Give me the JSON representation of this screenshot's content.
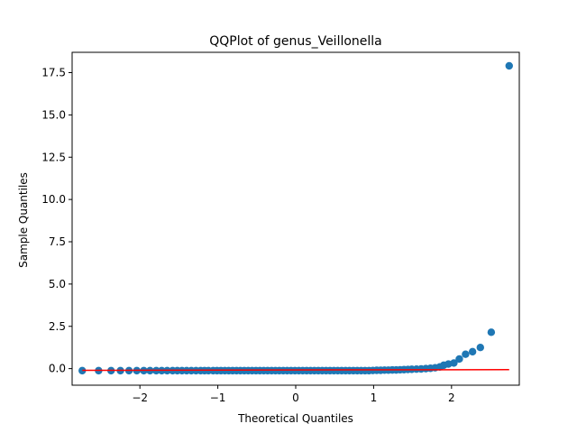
{
  "chart_data": {
    "type": "scatter",
    "title": "QQPlot of genus_Veillonella",
    "xlabel": "Theoretical Quantiles",
    "ylabel": "Sample Quantiles",
    "xlim": [
      -2.87,
      2.87
    ],
    "ylim": [
      -0.98,
      18.7
    ],
    "xticks": [
      -2,
      -1,
      0,
      1,
      2
    ],
    "xtick_labels": [
      "−2",
      "−1",
      "0",
      "1",
      "2"
    ],
    "yticks": [
      0.0,
      2.5,
      5.0,
      7.5,
      10.0,
      12.5,
      15.0,
      17.5
    ],
    "ytick_labels": [
      "0.0",
      "2.5",
      "5.0",
      "7.5",
      "10.0",
      "12.5",
      "15.0",
      "17.5"
    ],
    "grid": false,
    "marker_color": "#1f77b4",
    "line_color": "#ff0000",
    "series": [
      {
        "kind": "points",
        "x": [
          -2.74,
          -2.53,
          -2.37,
          -2.25,
          -2.14,
          -2.04,
          -1.95,
          -1.87,
          -1.79,
          -1.72,
          -1.65,
          -1.58,
          -1.52,
          -1.46,
          -1.4,
          -1.34,
          -1.28,
          -1.22,
          -1.17,
          -1.12,
          -1.06,
          -1.01,
          -0.96,
          -0.91,
          -0.86,
          -0.81,
          -0.76,
          -0.71,
          -0.66,
          -0.61,
          -0.56,
          -0.51,
          -0.46,
          -0.41,
          -0.36,
          -0.31,
          -0.26,
          -0.21,
          -0.16,
          -0.11,
          -0.06,
          -0.01,
          0.04,
          0.09,
          0.14,
          0.19,
          0.24,
          0.29,
          0.34,
          0.39,
          0.44,
          0.49,
          0.54,
          0.59,
          0.64,
          0.69,
          0.74,
          0.79,
          0.84,
          0.89,
          0.94,
          0.99,
          1.04,
          1.09,
          1.14,
          1.19,
          1.24,
          1.29,
          1.34,
          1.39,
          1.44,
          1.49,
          1.55,
          1.61,
          1.67,
          1.73,
          1.79,
          1.85,
          1.9,
          1.96,
          2.03,
          2.1,
          2.18,
          2.27,
          2.37,
          2.51,
          2.74
        ],
        "y": [
          -0.12,
          -0.12,
          -0.12,
          -0.12,
          -0.12,
          -0.12,
          -0.12,
          -0.12,
          -0.12,
          -0.12,
          -0.12,
          -0.12,
          -0.12,
          -0.12,
          -0.12,
          -0.12,
          -0.12,
          -0.12,
          -0.12,
          -0.12,
          -0.12,
          -0.12,
          -0.12,
          -0.12,
          -0.12,
          -0.12,
          -0.12,
          -0.12,
          -0.12,
          -0.12,
          -0.12,
          -0.12,
          -0.12,
          -0.12,
          -0.12,
          -0.12,
          -0.12,
          -0.12,
          -0.12,
          -0.12,
          -0.12,
          -0.12,
          -0.12,
          -0.12,
          -0.12,
          -0.12,
          -0.12,
          -0.12,
          -0.12,
          -0.12,
          -0.12,
          -0.12,
          -0.12,
          -0.12,
          -0.12,
          -0.12,
          -0.12,
          -0.12,
          -0.12,
          -0.12,
          -0.12,
          -0.11,
          -0.1,
          -0.1,
          -0.09,
          -0.09,
          -0.08,
          -0.08,
          -0.07,
          -0.06,
          -0.05,
          -0.04,
          -0.03,
          -0.02,
          0.0,
          0.02,
          0.05,
          0.1,
          0.2,
          0.27,
          0.33,
          0.57,
          0.85,
          1.0,
          1.25,
          2.15,
          17.9
        ]
      },
      {
        "kind": "reference-line",
        "x": [
          -2.74,
          2.74
        ],
        "y": [
          -0.1,
          -0.06
        ]
      }
    ]
  }
}
